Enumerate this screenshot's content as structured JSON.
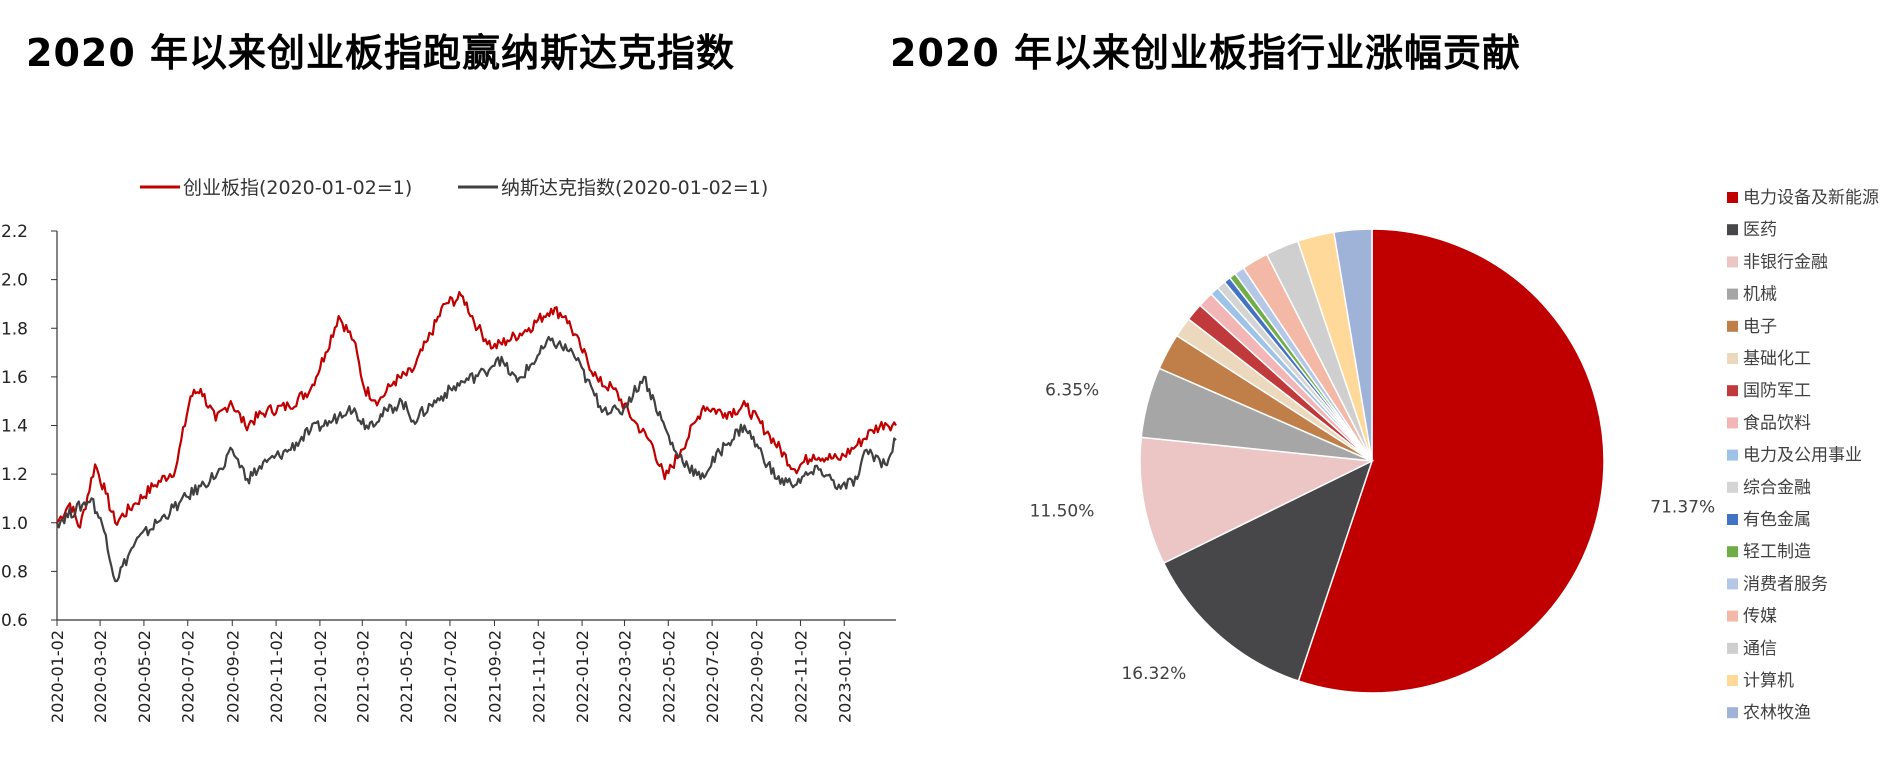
{
  "line_chart": {
    "title": "2020 年以来创业板指跑赢纳斯达克指数",
    "chart_data": {
      "type": "line",
      "ylim": [
        0.6,
        2.2
      ],
      "yticks": [
        "0.6",
        "0.8",
        "1.0",
        "1.2",
        "1.4",
        "1.6",
        "1.8",
        "2.0",
        "2.2"
      ],
      "x_ticks": [
        "2020-01-02",
        "2020-03-02",
        "2020-05-02",
        "2020-07-02",
        "2020-09-02",
        "2020-11-02",
        "2021-01-02",
        "2021-03-02",
        "2021-05-02",
        "2021-07-02",
        "2021-09-02",
        "2021-11-02",
        "2022-01-02",
        "2022-03-02",
        "2022-05-02",
        "2022-07-02",
        "2022-09-02",
        "2022-11-02",
        "2023-01-02"
      ],
      "legend_position": "top",
      "series": [
        {
          "name": "创业板指(2020-01-02=1)",
          "color": "#c00000",
          "points": [
            [
              "2020-01-02",
              1.0
            ],
            [
              "2020-01-20",
              1.08
            ],
            [
              "2020-02-03",
              0.98
            ],
            [
              "2020-02-24",
              1.24
            ],
            [
              "2020-03-10",
              1.12
            ],
            [
              "2020-03-23",
              1.0
            ],
            [
              "2020-04-20",
              1.08
            ],
            [
              "2020-05-15",
              1.15
            ],
            [
              "2020-06-15",
              1.22
            ],
            [
              "2020-07-06",
              1.52
            ],
            [
              "2020-07-20",
              1.55
            ],
            [
              "2020-08-10",
              1.42
            ],
            [
              "2020-08-31",
              1.5
            ],
            [
              "2020-09-20",
              1.4
            ],
            [
              "2020-10-20",
              1.46
            ],
            [
              "2020-11-20",
              1.48
            ],
            [
              "2020-12-20",
              1.55
            ],
            [
              "2021-01-10",
              1.7
            ],
            [
              "2021-01-28",
              1.85
            ],
            [
              "2021-02-18",
              1.75
            ],
            [
              "2021-03-05",
              1.55
            ],
            [
              "2021-03-25",
              1.5
            ],
            [
              "2021-04-15",
              1.58
            ],
            [
              "2021-05-10",
              1.62
            ],
            [
              "2021-06-01",
              1.75
            ],
            [
              "2021-06-25",
              1.9
            ],
            [
              "2021-07-20",
              1.93
            ],
            [
              "2021-08-10",
              1.8
            ],
            [
              "2021-08-31",
              1.72
            ],
            [
              "2021-09-20",
              1.75
            ],
            [
              "2021-10-20",
              1.8
            ],
            [
              "2021-11-20",
              1.88
            ],
            [
              "2021-12-10",
              1.85
            ],
            [
              "2021-12-31",
              1.72
            ],
            [
              "2022-01-25",
              1.58
            ],
            [
              "2022-02-15",
              1.55
            ],
            [
              "2022-03-15",
              1.42
            ],
            [
              "2022-04-10",
              1.32
            ],
            [
              "2022-04-27",
              1.18
            ],
            [
              "2022-05-20",
              1.3
            ],
            [
              "2022-06-10",
              1.42
            ],
            [
              "2022-06-20",
              1.48
            ],
            [
              "2022-07-20",
              1.45
            ],
            [
              "2022-08-18",
              1.48
            ],
            [
              "2022-09-20",
              1.36
            ],
            [
              "2022-10-25",
              1.22
            ],
            [
              "2022-11-20",
              1.28
            ],
            [
              "2022-12-25",
              1.26
            ],
            [
              "2023-01-20",
              1.32
            ],
            [
              "2023-02-10",
              1.38
            ],
            [
              "2023-02-28",
              1.41
            ],
            [
              "2023-03-15",
              1.4
            ]
          ]
        },
        {
          "name": "纳斯达克指数(2020-01-02=1)",
          "color": "#404040",
          "points": [
            [
              "2020-01-02",
              1.0
            ],
            [
              "2020-02-19",
              1.1
            ],
            [
              "2020-03-10",
              0.95
            ],
            [
              "2020-03-23",
              0.76
            ],
            [
              "2020-04-20",
              0.92
            ],
            [
              "2020-05-20",
              1.0
            ],
            [
              "2020-06-20",
              1.08
            ],
            [
              "2020-07-20",
              1.15
            ],
            [
              "2020-08-20",
              1.22
            ],
            [
              "2020-09-02",
              1.3
            ],
            [
              "2020-09-23",
              1.18
            ],
            [
              "2020-10-20",
              1.25
            ],
            [
              "2020-11-20",
              1.3
            ],
            [
              "2020-12-20",
              1.38
            ],
            [
              "2021-01-20",
              1.42
            ],
            [
              "2021-02-12",
              1.48
            ],
            [
              "2021-03-08",
              1.4
            ],
            [
              "2021-04-26",
              1.5
            ],
            [
              "2021-05-12",
              1.42
            ],
            [
              "2021-06-20",
              1.52
            ],
            [
              "2021-07-20",
              1.58
            ],
            [
              "2021-08-20",
              1.62
            ],
            [
              "2021-09-07",
              1.68
            ],
            [
              "2021-10-04",
              1.58
            ],
            [
              "2021-11-19",
              1.75
            ],
            [
              "2021-12-20",
              1.7
            ],
            [
              "2022-01-27",
              1.48
            ],
            [
              "2022-02-24",
              1.45
            ],
            [
              "2022-03-29",
              1.6
            ],
            [
              "2022-05-10",
              1.3
            ],
            [
              "2022-06-16",
              1.18
            ],
            [
              "2022-07-20",
              1.32
            ],
            [
              "2022-08-16",
              1.4
            ],
            [
              "2022-09-30",
              1.18
            ],
            [
              "2022-10-20",
              1.16
            ],
            [
              "2022-11-30",
              1.22
            ],
            [
              "2022-12-28",
              1.14
            ],
            [
              "2023-01-20",
              1.18
            ],
            [
              "2023-02-02",
              1.3
            ],
            [
              "2023-02-28",
              1.24
            ],
            [
              "2023-03-15",
              1.34
            ]
          ]
        }
      ]
    }
  },
  "pie_chart": {
    "title": "2020 年以来创业板指行业涨幅贡献",
    "chart_data": {
      "type": "pie",
      "legend_position": "right",
      "data_labels": [
        "71.37%",
        "16.32%",
        "11.50%",
        "6.35%"
      ],
      "slices": [
        {
          "name": "电力设备及新能源",
          "value": 71.37,
          "color": "#c00000"
        },
        {
          "name": "医药",
          "value": 16.32,
          "color": "#474749"
        },
        {
          "name": "非银行金融",
          "value": 11.5,
          "color": "#ecc5c5"
        },
        {
          "name": "机械",
          "value": 6.35,
          "color": "#a6a6a6"
        },
        {
          "name": "电子",
          "value": 3.3,
          "color": "#c07e48"
        },
        {
          "name": "基础化工",
          "value": 1.8,
          "color": "#ecd8bd"
        },
        {
          "name": "国防军工",
          "value": 1.6,
          "color": "#c0393b"
        },
        {
          "name": "食品饮料",
          "value": 1.4,
          "color": "#f2b6b6"
        },
        {
          "name": "电力及公用事业",
          "value": 0.8,
          "color": "#9dc3e6"
        },
        {
          "name": "综合金融",
          "value": 0.8,
          "color": "#d4d4d4"
        },
        {
          "name": "有色金属",
          "value": 0.6,
          "color": "#4472c4"
        },
        {
          "name": "轻工制造",
          "value": 0.6,
          "color": "#70ad47"
        },
        {
          "name": "消费者服务",
          "value": 0.9,
          "color": "#b4c7e7"
        },
        {
          "name": "传媒",
          "value": 2.4,
          "color": "#f4b9a6"
        },
        {
          "name": "通信",
          "value": 3.0,
          "color": "#cfcfcf"
        },
        {
          "name": "计算机",
          "value": 3.3,
          "color": "#ffd99a"
        },
        {
          "name": "农林牧渔",
          "value": 3.4,
          "color": "#9fb3d9"
        }
      ]
    }
  }
}
